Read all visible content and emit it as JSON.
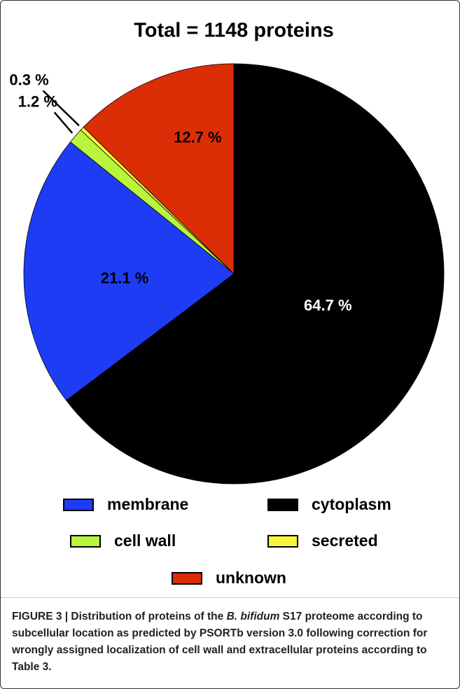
{
  "chart_data": {
    "type": "pie",
    "title": "Total = 1148 proteins",
    "categories": [
      "cytoplasm",
      "membrane",
      "cell wall",
      "secreted",
      "unknown"
    ],
    "values": [
      64.7,
      21.1,
      1.2,
      0.3,
      12.7
    ],
    "value_labels": [
      "64.7 %",
      "21.1 %",
      "1.2 %",
      "0.3 %",
      "12.7 %"
    ],
    "colors": [
      "#000000",
      "#1f3cf5",
      "#b8f53c",
      "#f7f53a",
      "#dc2e06"
    ],
    "legend_order": [
      1,
      0,
      2,
      3,
      4
    ]
  },
  "caption": {
    "prefix": "FIGURE 3 | Distribution of proteins of the ",
    "italic": "B. bifidum",
    "suffix": " S17 proteome according to subcellular location as predicted by PSORTb version 3.0 following correction for wrongly assigned localization of cell wall and extracellular proteins according to Table 3."
  }
}
